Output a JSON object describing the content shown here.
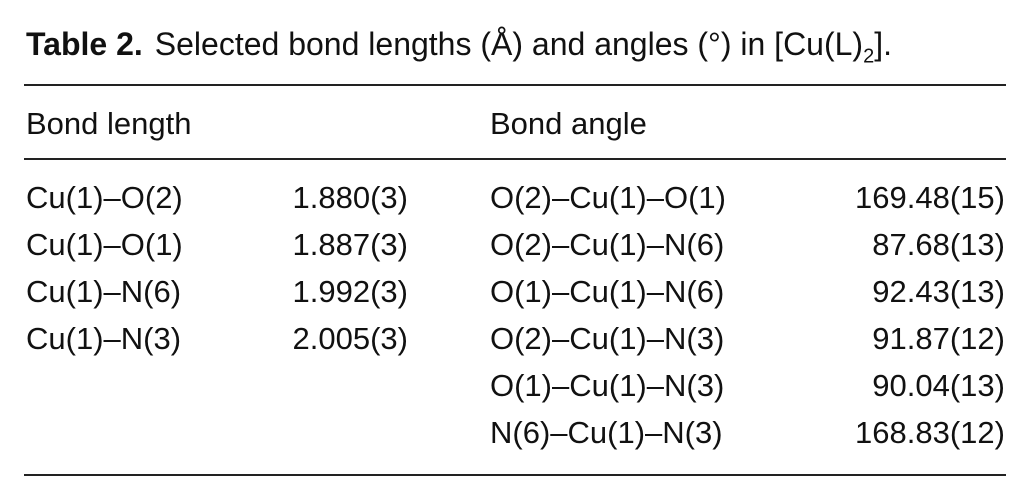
{
  "caption": {
    "label": "Table 2.",
    "text": "Selected bond lengths (Å) and angles (°) in [Cu(L)",
    "subscript": "2",
    "end": "]."
  },
  "table": {
    "headers": [
      "Bond length",
      "Bond angle"
    ],
    "bond_lengths": [
      [
        "Cu(1)–O(2)",
        "1.880(3)"
      ],
      [
        "Cu(1)–O(1)",
        "1.887(3)"
      ],
      [
        "Cu(1)–N(6)",
        "1.992(3)"
      ],
      [
        "Cu(1)–N(3)",
        "2.005(3)"
      ]
    ],
    "bond_angles": [
      [
        "O(2)–Cu(1)–O(1)",
        "169.48(15)"
      ],
      [
        "O(2)–Cu(1)–N(6)",
        "87.68(13)"
      ],
      [
        "O(1)–Cu(1)–N(6)",
        "92.43(13)"
      ],
      [
        "O(2)–Cu(1)–N(3)",
        "91.87(12)"
      ],
      [
        "O(1)–Cu(1)–N(3)",
        "90.04(13)"
      ],
      [
        "N(6)–Cu(1)–N(3)",
        "168.83(12)"
      ]
    ]
  }
}
